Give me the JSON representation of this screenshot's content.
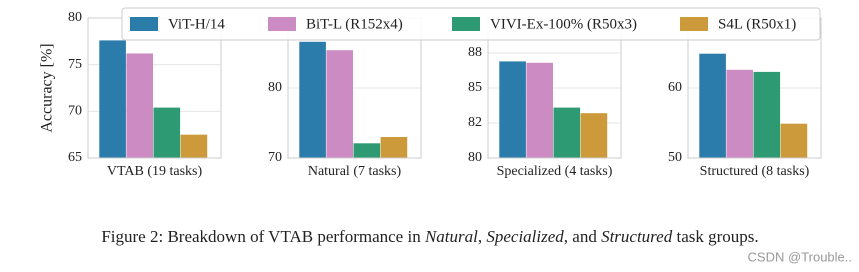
{
  "legend": {
    "position": "top",
    "entries": [
      {
        "name": "ViT-H/14",
        "color": "#2b7bab"
      },
      {
        "name": "BiT-L (R152x4)",
        "color": "#cc8cc3"
      },
      {
        "name": "VIVI-Ex-100% (R50x3)",
        "color": "#2e9a74"
      },
      {
        "name": "S4L (R50x1)",
        "color": "#cc9a3b"
      }
    ]
  },
  "chart_data": [
    {
      "type": "bar",
      "xlabel": "VTAB (19 tasks)",
      "ylabel": "Accuracy [%]",
      "values": [
        77.6,
        76.2,
        70.4,
        67.5
      ],
      "ylim": [
        65,
        80
      ],
      "yticks": [
        65,
        70,
        75,
        80
      ],
      "grid": true
    },
    {
      "type": "bar",
      "xlabel": "Natural (7 tasks)",
      "values": [
        86.6,
        85.4,
        72.1,
        73.0
      ],
      "ylim": [
        70,
        90
      ],
      "yticks": [
        70,
        80
      ],
      "grid": true
    },
    {
      "type": "bar",
      "xlabel": "Specialized (4 tasks)",
      "values": [
        86.9,
        86.8,
        83.6,
        83.2
      ],
      "ylim": [
        80,
        90
      ],
      "yticks": [
        80,
        {
          "value": 82.5,
          "label": "82"
        },
        85,
        {
          "value": 87.5,
          "label": "88"
        }
      ],
      "grid": true
    },
    {
      "type": "bar",
      "xlabel": "Structured (8 tasks)",
      "values": [
        64.9,
        62.6,
        62.3,
        54.9
      ],
      "ylim": [
        50,
        70
      ],
      "yticks": [
        50,
        60
      ],
      "grid": true
    }
  ],
  "caption": [
    "Figure 2: Breakdown of VTAB performance in ",
    "Natural",
    ", ",
    "Specialized",
    ", and ",
    "Structured",
    " task groups."
  ],
  "watermark": "CSDN @Trouble.."
}
